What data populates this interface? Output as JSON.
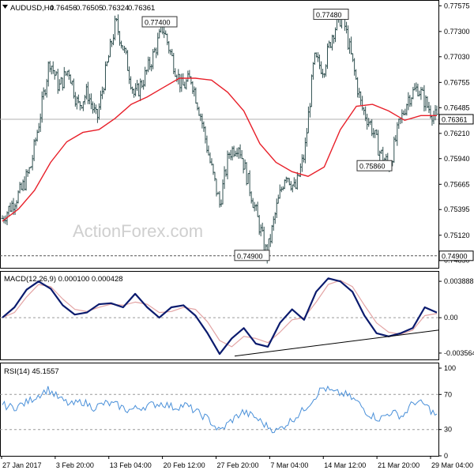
{
  "chart_data": [
    {
      "type": "candlestick",
      "title": "AUDUSD,H4",
      "header_values": [
        "0.76456",
        "0.76505",
        "0.76324",
        "0.76361"
      ],
      "ylim": [
        0.7478,
        0.7762
      ],
      "yticks": [
        "0.77575",
        "0.77300",
        "0.77030",
        "0.76755",
        "0.76485",
        "0.76210",
        "0.75940",
        "0.75665",
        "0.75395",
        "0.75120",
        "0.74850"
      ],
      "last_price_label": "0.76361",
      "last_price": 0.76361,
      "support_label": "0.74900",
      "support": 0.749,
      "annotations": [
        {
          "text": "0.77400",
          "value": 0.774
        },
        {
          "text": "0.77480",
          "value": 0.7748
        },
        {
          "text": "0.75860",
          "value": 0.7586
        },
        {
          "text": "0.74900",
          "value": 0.749
        }
      ],
      "price_path": [
        0.753,
        0.7545,
        0.756,
        0.7585,
        0.764,
        0.77,
        0.767,
        0.769,
        0.765,
        0.7665,
        0.7635,
        0.769,
        0.774,
        0.7705,
        0.766,
        0.768,
        0.7705,
        0.7735,
        0.77,
        0.767,
        0.768,
        0.764,
        0.759,
        0.7545,
        0.76,
        0.761,
        0.757,
        0.753,
        0.749,
        0.754,
        0.758,
        0.756,
        0.76,
        0.77,
        0.769,
        0.773,
        0.7748,
        0.77,
        0.765,
        0.763,
        0.76,
        0.7586,
        0.763,
        0.766,
        0.767,
        0.765,
        0.7636
      ],
      "ma_path": [
        0.7527,
        0.754,
        0.756,
        0.759,
        0.7612,
        0.7622,
        0.7625,
        0.7637,
        0.7652,
        0.766,
        0.767,
        0.768,
        0.768,
        0.7678,
        0.7665,
        0.7645,
        0.761,
        0.759,
        0.758,
        0.7575,
        0.7585,
        0.7625,
        0.765,
        0.7652,
        0.7645,
        0.7635,
        0.764,
        0.764
      ]
    },
    {
      "type": "line",
      "title": "MACD(12,26,9) 0.000100 0.000428",
      "yticks": [
        "0.003888",
        "0.00",
        "-0.003564"
      ],
      "ylim": [
        -0.00395,
        0.0042
      ],
      "zero": 0.0,
      "macd": [
        0.0,
        0.001,
        0.0027,
        0.0035,
        0.0028,
        0.0012,
        0.0003,
        0.0005,
        0.0013,
        0.0014,
        0.001,
        0.0023,
        0.001,
        0.0,
        0.001,
        0.0012,
        0.0002,
        -0.0015,
        -0.0035,
        -0.002,
        -0.001,
        -0.0025,
        -0.0028,
        -0.0005,
        0.0008,
        -0.0002,
        0.0025,
        0.0038,
        0.0035,
        0.0025,
        0.0002,
        -0.0015,
        -0.0018,
        -0.0015,
        -0.001,
        0.001,
        0.0005
      ],
      "signal": [
        0.0,
        0.0005,
        0.002,
        0.0032,
        0.003,
        0.0018,
        0.0008,
        0.0006,
        0.001,
        0.0013,
        0.0012,
        0.0015,
        0.0013,
        0.0005,
        0.0006,
        0.001,
        0.0008,
        -0.0004,
        -0.0022,
        -0.0028,
        -0.0018,
        -0.002,
        -0.0024,
        -0.0014,
        -0.0002,
        0.0,
        0.0015,
        0.0032,
        0.0036,
        0.003,
        0.0012,
        -0.0005,
        -0.0014,
        -0.0016,
        -0.0012,
        0.0002,
        0.0004
      ],
      "trendline": [
        [
          0,
          -0.0037
        ],
        [
          1,
          -0.0012
        ]
      ]
    },
    {
      "type": "line",
      "title": "RSI(14) 45.1557",
      "yticks": [
        "100",
        "70",
        "30",
        "0"
      ],
      "ylim": [
        0,
        100
      ],
      "levels": [
        70,
        30
      ],
      "values": [
        58,
        55,
        60,
        68,
        76,
        65,
        58,
        62,
        55,
        60,
        58,
        52,
        55,
        58,
        60,
        55,
        58,
        50,
        42,
        28,
        40,
        50,
        45,
        35,
        28,
        38,
        48,
        62,
        78,
        72,
        70,
        62,
        48,
        42,
        50,
        45,
        62,
        58,
        45
      ]
    }
  ],
  "x_axis": {
    "ticks": [
      "27 Jan 2017",
      "3 Feb 20:00",
      "13 Feb 04:00",
      "20 Feb 12:00",
      "27 Feb 20:00",
      "7 Mar 04:00",
      "14 Mar 12:00",
      "21 Mar 20:00",
      "29 Mar 04:00"
    ]
  },
  "watermark": "ActionForex.com",
  "colors": {
    "bars": "#2f4f4f",
    "ma": "#e8202a",
    "macd": "#0b1b6e",
    "signal": "#e3a4a4",
    "rsi": "#4a90d9",
    "grid": "#9a9a9a"
  }
}
